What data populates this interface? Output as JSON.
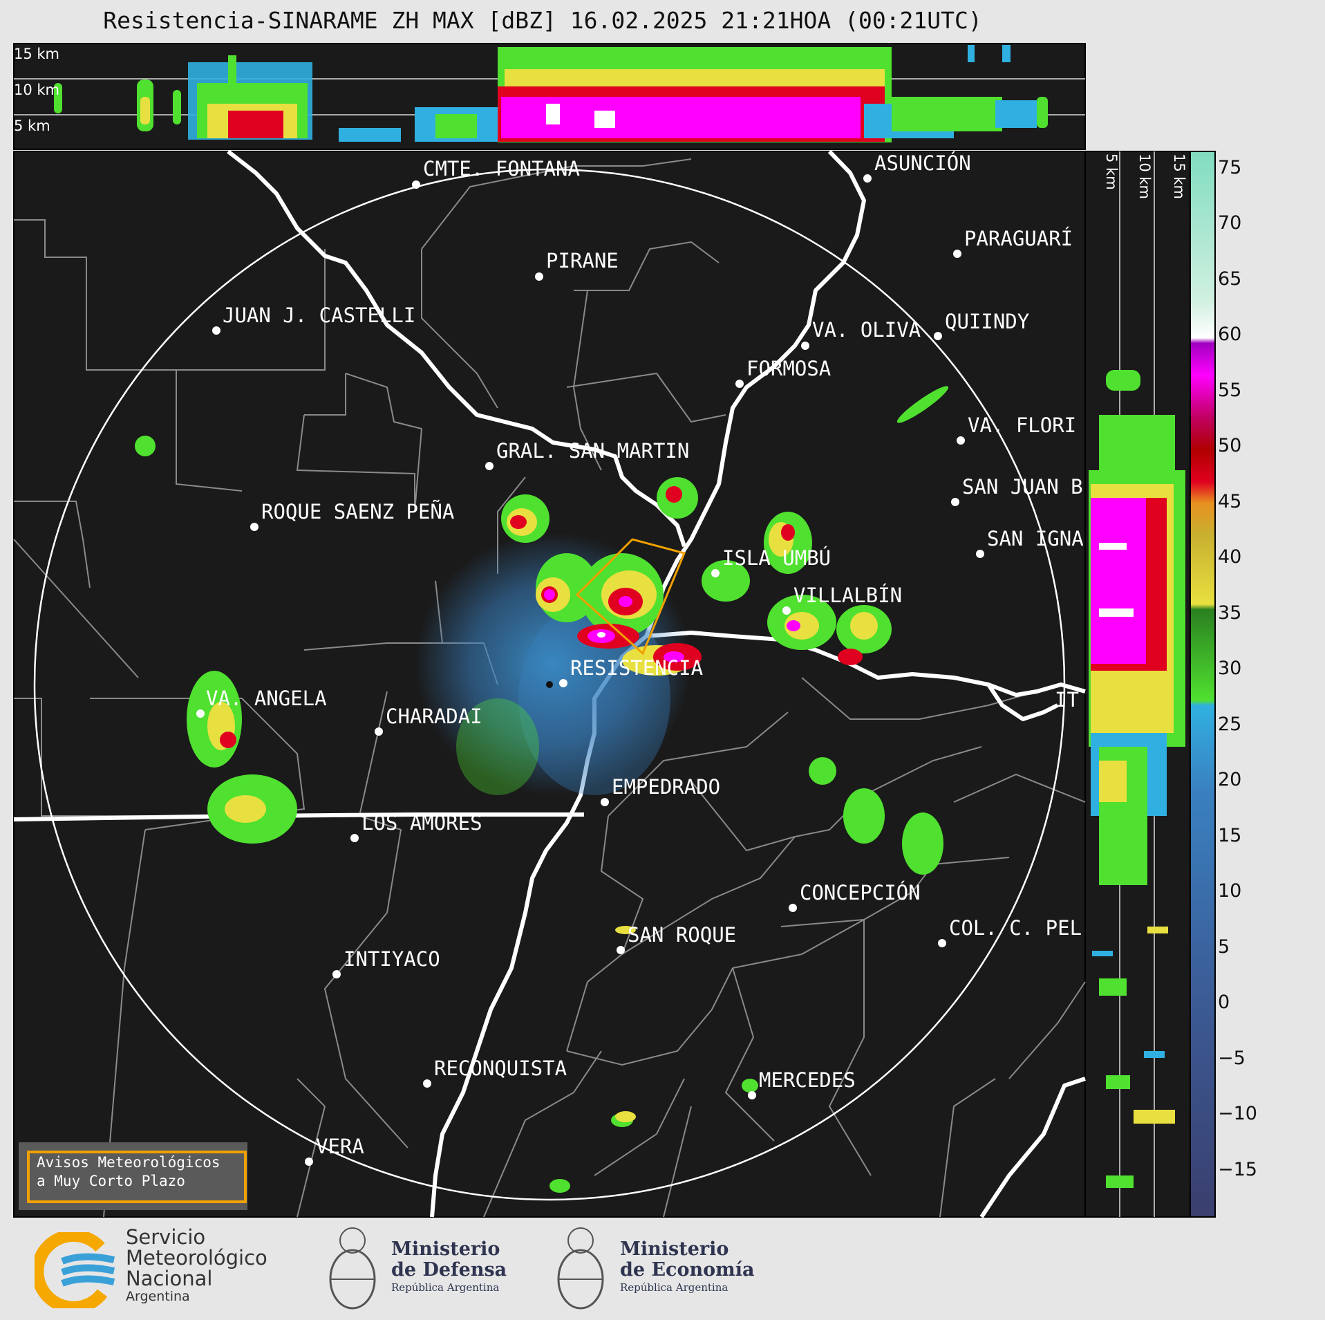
{
  "title": "Resistencia-SINARAME ZH MAX [dBZ] 16.02.2025 21:21HOA (00:21UTC)",
  "height_profile_labels": [
    "15 km",
    "10 km",
    "5 km"
  ],
  "side_profile_labels": [
    "5 km",
    "10 km",
    "15 km"
  ],
  "colorbar": {
    "ticks": [
      "75",
      "70",
      "65",
      "60",
      "55",
      "50",
      "45",
      "40",
      "35",
      "30",
      "25",
      "20",
      "15",
      "10",
      "5",
      "0",
      "−5",
      "−10",
      "−15"
    ],
    "colors": {
      "cyan_high": "#85e0c0",
      "white": "#ffffff",
      "purple": "#a000c0",
      "magenta": "#ff00ff",
      "red": "#e00020",
      "dark_red": "#b00000",
      "orange": "#e89020",
      "yellow": "#e8e040",
      "dark_green": "#2a8020",
      "green": "#50e030",
      "light_blue": "#30b0e0",
      "blue": "#3a70b0",
      "navy": "#3a4070"
    }
  },
  "cities": [
    {
      "name": "CMTE. FONTANA"
    },
    {
      "name": "ASUNCIÓN"
    },
    {
      "name": "PARAGUARÍ"
    },
    {
      "name": "PIRANE"
    },
    {
      "name": "JUAN J. CASTELLI"
    },
    {
      "name": "VA. OLIVA"
    },
    {
      "name": "QUIINDY"
    },
    {
      "name": "FORMOSA"
    },
    {
      "name": "VA. FLORI"
    },
    {
      "name": "GRAL. SAN MARTIN"
    },
    {
      "name": "SAN JUAN B"
    },
    {
      "name": "ROQUE SAENZ PEÑA"
    },
    {
      "name": "SAN IGNA"
    },
    {
      "name": "ISLA UMBÚ"
    },
    {
      "name": "VILLALBÍN"
    },
    {
      "name": "RESISTENCIA"
    },
    {
      "name": "VA. ANGELA"
    },
    {
      "name": "CHARADAI"
    },
    {
      "name": "IT"
    },
    {
      "name": "EMPEDRADO"
    },
    {
      "name": "LOS AMORES"
    },
    {
      "name": "CONCEPCIÓN"
    },
    {
      "name": "SAN ROQUE"
    },
    {
      "name": "COL. C. PEL"
    },
    {
      "name": "INTIYACO"
    },
    {
      "name": "RECONQUISTA"
    },
    {
      "name": "MERCEDES"
    },
    {
      "name": "VERA"
    }
  ],
  "aviso": {
    "line1": "Avisos Meteorológicos",
    "line2": "a Muy Corto Plazo"
  },
  "logos": {
    "smn": {
      "line1": "Servicio",
      "line2": "Meteorológico",
      "line3": "Nacional",
      "line4": "Argentina"
    },
    "defensa": {
      "line1": "Ministerio",
      "line2": "de Defensa",
      "line3": "República Argentina"
    },
    "economia": {
      "line1": "Ministerio",
      "line2": "de Economía",
      "line3": "República Argentina"
    }
  }
}
